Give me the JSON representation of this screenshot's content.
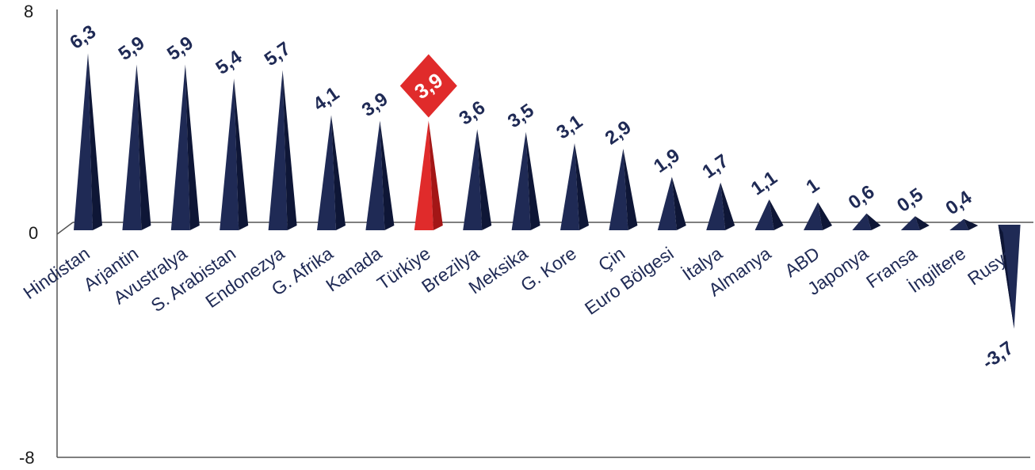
{
  "chart_data": {
    "type": "bar",
    "title": "",
    "xlabel": "",
    "ylabel": "",
    "ylim": [
      -8,
      8
    ],
    "yticks": [
      "8",
      "0",
      "-8"
    ],
    "categories": [
      "Hindistan",
      "Arjantin",
      "Avustralya",
      "S. Arabistan",
      "Endonezya",
      "G. Afrika",
      "Kanada",
      "Türkiye",
      "Brezilya",
      "Meksika",
      "G. Kore",
      "Çin",
      "Euro Bölgesi",
      "İtalya",
      "Almanya",
      "ABD",
      "Japonya",
      "Fransa",
      "İngiltere",
      "Rusya"
    ],
    "values": [
      6.3,
      5.9,
      5.9,
      5.4,
      5.7,
      4.1,
      3.9,
      3.9,
      3.6,
      3.5,
      3.1,
      2.9,
      1.9,
      1.7,
      1.1,
      1,
      0.6,
      0.5,
      0.4,
      -3.7
    ],
    "value_labels": [
      "6,3",
      "5,9",
      "5,9",
      "5,4",
      "5,7",
      "4,1",
      "3,9",
      "3,9",
      "3,6",
      "3,5",
      "3,1",
      "2,9",
      "1,9",
      "1,7",
      "1,1",
      "1",
      "0,6",
      "0,5",
      "0,4",
      "-3,7"
    ],
    "highlight_index": 7,
    "grid": false,
    "legend": "none"
  },
  "colors": {
    "bar": "#1f2a55",
    "bar_shade": "#0e1636",
    "highlight": "#e02b2b",
    "highlight_shade": "#a31616",
    "axis": "#555555"
  }
}
